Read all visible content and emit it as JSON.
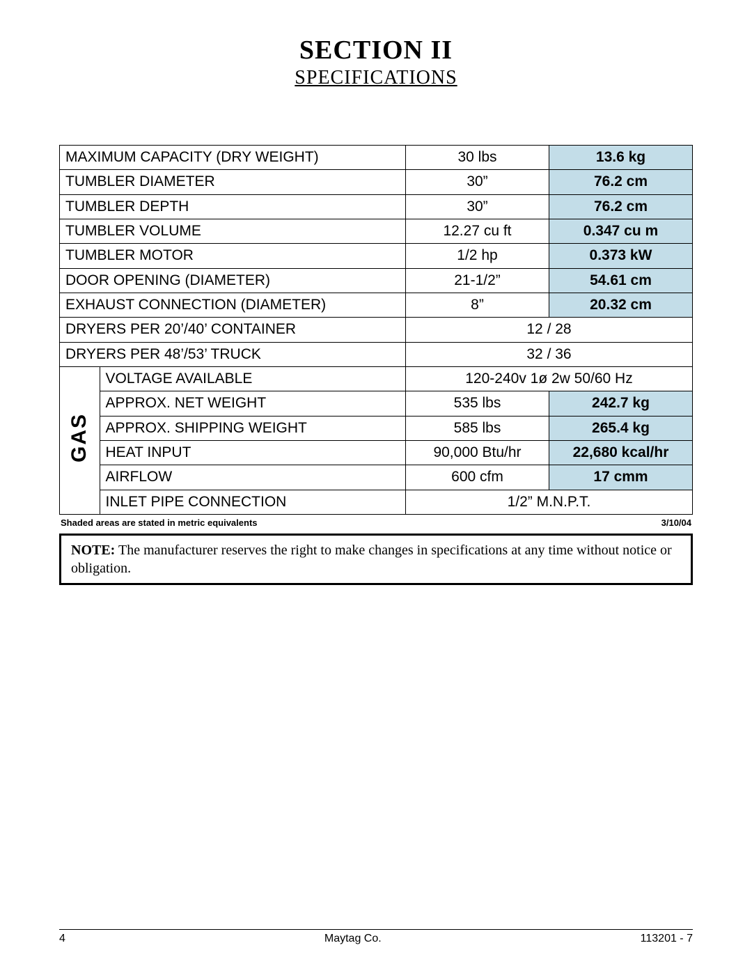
{
  "colors": {
    "metric_bg": "#c3dde8",
    "border": "#000000",
    "text": "#000000",
    "page_bg": "#ffffff"
  },
  "header": {
    "section": "SECTION II",
    "subtitle": "SPECIFICATIONS"
  },
  "table": {
    "gas_label": "GAS",
    "rows": [
      {
        "label": "MAXIMUM CAPACITY (DRY WEIGHT)",
        "us": "30 lbs",
        "metric": "13.6 kg"
      },
      {
        "label": "TUMBLER DIAMETER",
        "us": "30”",
        "metric": "76.2 cm"
      },
      {
        "label": "TUMBLER DEPTH",
        "us": "30”",
        "metric": "76.2 cm"
      },
      {
        "label": "TUMBLER VOLUME",
        "us": "12.27 cu ft",
        "metric": "0.347 cu m"
      },
      {
        "label": "TUMBLER MOTOR",
        "us": "1/2 hp",
        "metric": "0.373 kW"
      },
      {
        "label": "DOOR OPENING (DIAMETER)",
        "us": "21-1/2”",
        "metric": "54.61 cm"
      },
      {
        "label": "EXHAUST CONNECTION (DIAMETER)",
        "us": "8”",
        "metric": "20.32 cm"
      },
      {
        "label": "DRYERS PER 20’/40’ CONTAINER",
        "span": "12 / 28"
      },
      {
        "label": "DRYERS PER 48’/53’ TRUCK",
        "span": "32 / 36"
      }
    ],
    "gas_rows": [
      {
        "label": "VOLTAGE AVAILABLE",
        "span": "120-240v  1ø  2w  50/60 Hz"
      },
      {
        "label": "APPROX. NET WEIGHT",
        "us": "535 lbs",
        "metric": "242.7 kg"
      },
      {
        "label": "APPROX. SHIPPING WEIGHT",
        "us": "585 lbs",
        "metric": "265.4 kg"
      },
      {
        "label": "HEAT INPUT",
        "us": "90,000 Btu/hr",
        "metric": "22,680 kcal/hr"
      },
      {
        "label": "AIRFLOW",
        "us": "600 cfm",
        "metric": "17 cmm"
      },
      {
        "label": "INLET PIPE CONNECTION",
        "span": "1/2” M.N.P.T."
      }
    ]
  },
  "table_footer": {
    "left": "Shaded areas are stated in metric equivalents",
    "right": "3/10/04"
  },
  "note": {
    "label": "NOTE:",
    "text": "The manufacturer reserves the right to make changes in specifications at any time without notice or obligation."
  },
  "footer": {
    "page_num": "4",
    "company": "Maytag Co.",
    "doc_num": "113201 - 7"
  },
  "col_widths": {
    "gas": "36px",
    "label": "auto",
    "us": "206px",
    "metric": "206px"
  }
}
